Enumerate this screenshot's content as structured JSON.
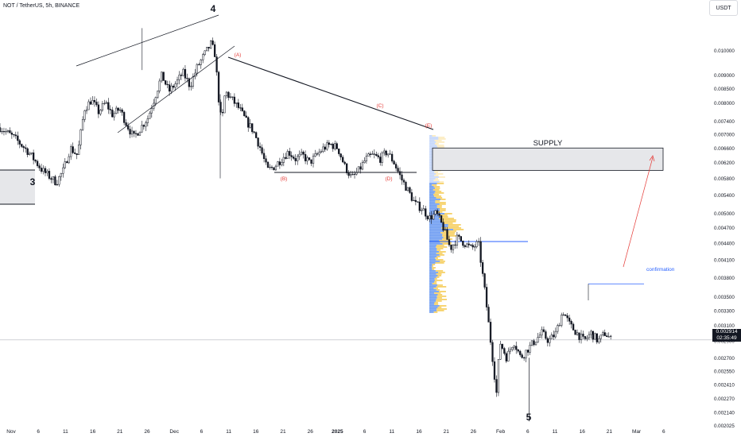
{
  "header": {
    "symbol_line": "NOT / TetherUS, 5h, BINANCE",
    "unit_button": "USDT",
    "last_price": "0.002914",
    "countdown": "02:35:49"
  },
  "chart_data": {
    "type": "candlestick",
    "title": "NOT / TetherUS, 5h, BINANCE",
    "y_scale": "log",
    "ylim": [
      0.00202,
      0.0124
    ],
    "y_ticks": [
      "0.010000",
      "0.009000",
      "0.008500",
      "0.008000",
      "0.007400",
      "0.007000",
      "0.006600",
      "0.006200",
      "0.005800",
      "0.005400",
      "0.005000",
      "0.004700",
      "0.004400",
      "0.004100",
      "0.003800",
      "0.003500",
      "0.003300",
      "0.003100",
      "0.002900",
      "0.002700",
      "0.002550",
      "0.002410",
      "0.002270",
      "0.002140",
      "0.002025"
    ],
    "x_ticks": [
      "Nov",
      "6",
      "11",
      "16",
      "21",
      "26",
      "Dec",
      "6",
      "11",
      "16",
      "21",
      "26",
      "2025",
      "6",
      "11",
      "16",
      "21",
      "26",
      "Feb",
      "6",
      "11",
      "16",
      "21",
      "Mar",
      "6"
    ],
    "price_path": [
      [
        0.0,
        0.0072
      ],
      [
        2,
        0.0069
      ],
      [
        4,
        0.0065
      ],
      [
        6,
        0.006
      ],
      [
        8,
        0.0057
      ],
      [
        9,
        0.006
      ],
      [
        10,
        0.0066
      ],
      [
        11,
        0.0064
      ],
      [
        12,
        0.0078
      ],
      [
        13,
        0.0081
      ],
      [
        14,
        0.0077
      ],
      [
        15,
        0.008
      ],
      [
        16,
        0.0076
      ],
      [
        17,
        0.0078
      ],
      [
        18,
        0.0073
      ],
      [
        19,
        0.0069
      ],
      [
        20,
        0.0072
      ],
      [
        21,
        0.0075
      ],
      [
        22,
        0.0082
      ],
      [
        23,
        0.009
      ],
      [
        24,
        0.0084
      ],
      [
        25,
        0.0087
      ],
      [
        26,
        0.0091
      ],
      [
        27,
        0.0086
      ],
      [
        28,
        0.0093
      ],
      [
        29,
        0.0098
      ],
      [
        30,
        0.0103
      ],
      [
        30.6,
        0.0098
      ],
      [
        31,
        0.0083
      ],
      [
        31.5,
        0.0073
      ],
      [
        32,
        0.0084
      ],
      [
        33,
        0.0081
      ],
      [
        34,
        0.0078
      ],
      [
        35,
        0.0074
      ],
      [
        36,
        0.0071
      ],
      [
        37,
        0.0066
      ],
      [
        38,
        0.006
      ],
      [
        39,
        0.0061
      ],
      [
        40,
        0.0063
      ],
      [
        41,
        0.0065
      ],
      [
        42,
        0.0063
      ],
      [
        43,
        0.0064
      ],
      [
        44,
        0.0062
      ],
      [
        45,
        0.0064
      ],
      [
        46,
        0.0066
      ],
      [
        47,
        0.0067
      ],
      [
        48,
        0.0066
      ],
      [
        49,
        0.0061
      ],
      [
        50,
        0.0058
      ],
      [
        51,
        0.006
      ],
      [
        52,
        0.0063
      ],
      [
        53,
        0.0064
      ],
      [
        54,
        0.0063
      ],
      [
        55,
        0.0065
      ],
      [
        56,
        0.0062
      ],
      [
        57,
        0.0058
      ],
      [
        58,
        0.0055
      ],
      [
        59,
        0.0052
      ],
      [
        60,
        0.0051
      ],
      [
        61,
        0.0049
      ],
      [
        62,
        0.005
      ],
      [
        63,
        0.0047
      ],
      [
        64,
        0.0043
      ],
      [
        65,
        0.0045
      ],
      [
        66,
        0.0044
      ],
      [
        67,
        0.0043
      ],
      [
        68,
        0.0044
      ],
      [
        69,
        0.0035
      ],
      [
        70,
        0.0027
      ],
      [
        70.6,
        0.0023
      ],
      [
        71,
        0.0029
      ],
      [
        72,
        0.0027
      ],
      [
        73,
        0.0029
      ],
      [
        74,
        0.0027
      ],
      [
        75,
        0.0028
      ],
      [
        76,
        0.0029
      ],
      [
        77,
        0.003
      ],
      [
        78,
        0.0029
      ],
      [
        79,
        0.003
      ],
      [
        80,
        0.0033
      ],
      [
        81,
        0.0031
      ],
      [
        82,
        0.003
      ],
      [
        83,
        0.0029
      ],
      [
        84,
        0.003
      ],
      [
        85,
        0.0029
      ],
      [
        86,
        0.003
      ],
      [
        87,
        0.0029
      ]
    ],
    "x_range": [
      0,
      100
    ],
    "annotations": {
      "wave_labels": [
        "3",
        "4",
        "5"
      ],
      "abcde_labels": [
        "(A)",
        "(B)",
        "(C)",
        "(D)",
        "(E)"
      ],
      "supply_label": "SUPPLY",
      "confirmation_label": "confirmation",
      "supply_zone": [
        0.006,
        0.0066
      ],
      "confirmation_level": 0.0037,
      "poc_level": 0.00443,
      "last_price_level": 0.002914
    },
    "colors": {
      "up": "#131722",
      "down": "#131722",
      "volume_up": "#f5c94d",
      "volume_down": "#5b8ff0",
      "annotation_red": "#e53935",
      "confirmation_blue": "#2962ff"
    }
  }
}
